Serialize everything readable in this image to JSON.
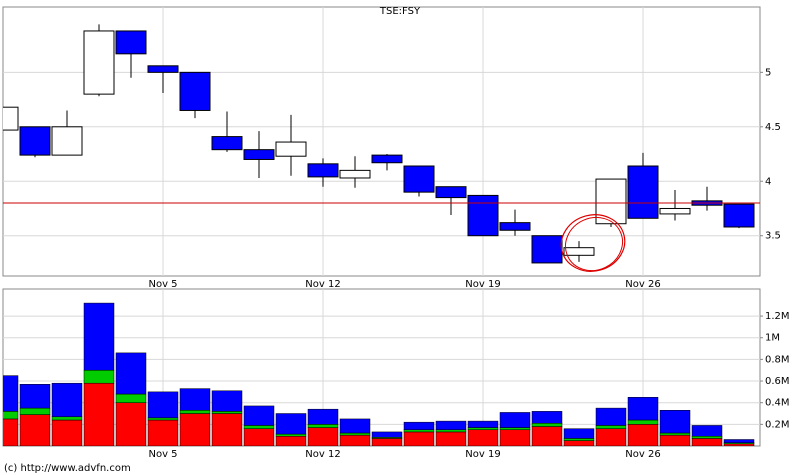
{
  "chart_data": [
    {
      "type": "candlestick",
      "title": "TSE:FSY",
      "categories": [
        null,
        null,
        null,
        null,
        null,
        "Nov 5",
        null,
        null,
        null,
        null,
        "Nov 12",
        null,
        null,
        null,
        null,
        "Nov 19",
        null,
        null,
        null,
        null,
        "Nov 26",
        null,
        null,
        null
      ],
      "open": [
        4.47,
        4.5,
        4.24,
        4.8,
        5.38,
        5.06,
        5.0,
        4.41,
        4.29,
        4.23,
        4.16,
        4.03,
        4.24,
        4.14,
        3.95,
        3.87,
        3.62,
        3.5,
        3.32,
        3.61,
        4.14,
        3.7,
        3.82,
        3.79
      ],
      "high": [
        4.68,
        4.5,
        4.65,
        5.44,
        5.38,
        5.06,
        5.0,
        4.64,
        4.46,
        4.61,
        4.21,
        4.23,
        4.25,
        4.14,
        3.95,
        3.87,
        3.74,
        3.5,
        3.45,
        4.02,
        4.26,
        3.92,
        3.95,
        3.79
      ],
      "low": [
        4.47,
        4.22,
        4.24,
        4.78,
        4.95,
        4.81,
        4.58,
        4.27,
        4.03,
        4.05,
        3.95,
        3.94,
        4.1,
        3.86,
        3.69,
        3.5,
        3.5,
        3.25,
        3.26,
        3.58,
        3.66,
        3.64,
        3.73,
        3.57
      ],
      "close": [
        4.68,
        4.24,
        4.5,
        5.38,
        5.17,
        5.0,
        4.65,
        4.29,
        4.2,
        4.36,
        4.04,
        4.1,
        4.17,
        3.9,
        3.85,
        3.5,
        3.55,
        3.25,
        3.39,
        4.02,
        3.66,
        3.75,
        3.78,
        3.58
      ],
      "up_color": "#ffffff",
      "down_color": "#0000ff",
      "reference_line": {
        "value": 3.8,
        "color": "#cc0000"
      },
      "ylim": [
        3.13,
        5.6
      ],
      "yticks": [
        3.5,
        4,
        4.5,
        5
      ],
      "grid": true
    },
    {
      "type": "stacked_bar",
      "categories": [
        null,
        null,
        null,
        null,
        null,
        "Nov 5",
        null,
        null,
        null,
        null,
        "Nov 12",
        null,
        null,
        null,
        null,
        "Nov 19",
        null,
        null,
        null,
        null,
        "Nov 26",
        null,
        null,
        null
      ],
      "series": [
        {
          "color": "#ff0000",
          "values": [
            250000,
            290000,
            240000,
            580000,
            400000,
            240000,
            300000,
            300000,
            160000,
            90000,
            170000,
            100000,
            70000,
            130000,
            130000,
            150000,
            150000,
            180000,
            50000,
            160000,
            200000,
            100000,
            70000,
            20000
          ]
        },
        {
          "color": "#00cc00",
          "values": [
            70000,
            60000,
            30000,
            120000,
            80000,
            20000,
            30000,
            20000,
            30000,
            20000,
            30000,
            20000,
            10000,
            20000,
            20000,
            20000,
            20000,
            30000,
            20000,
            30000,
            40000,
            20000,
            20000,
            10000
          ]
        },
        {
          "color": "#0000ff",
          "values": [
            330000,
            220000,
            310000,
            620000,
            380000,
            240000,
            200000,
            190000,
            180000,
            190000,
            140000,
            130000,
            50000,
            70000,
            80000,
            60000,
            140000,
            110000,
            90000,
            160000,
            210000,
            210000,
            100000,
            30000
          ]
        }
      ],
      "ylim": [
        0,
        1450000
      ],
      "yticks": [
        {
          "value": 200000,
          "label": "0.2M"
        },
        {
          "value": 400000,
          "label": "0.4M"
        },
        {
          "value": 600000,
          "label": "0.6M"
        },
        {
          "value": 800000,
          "label": "0.8M"
        },
        {
          "value": 1000000,
          "label": "1M"
        },
        {
          "value": 1200000,
          "label": "1.2M"
        }
      ],
      "grid": true
    }
  ],
  "footer": "(c) http://www.advfn.com"
}
